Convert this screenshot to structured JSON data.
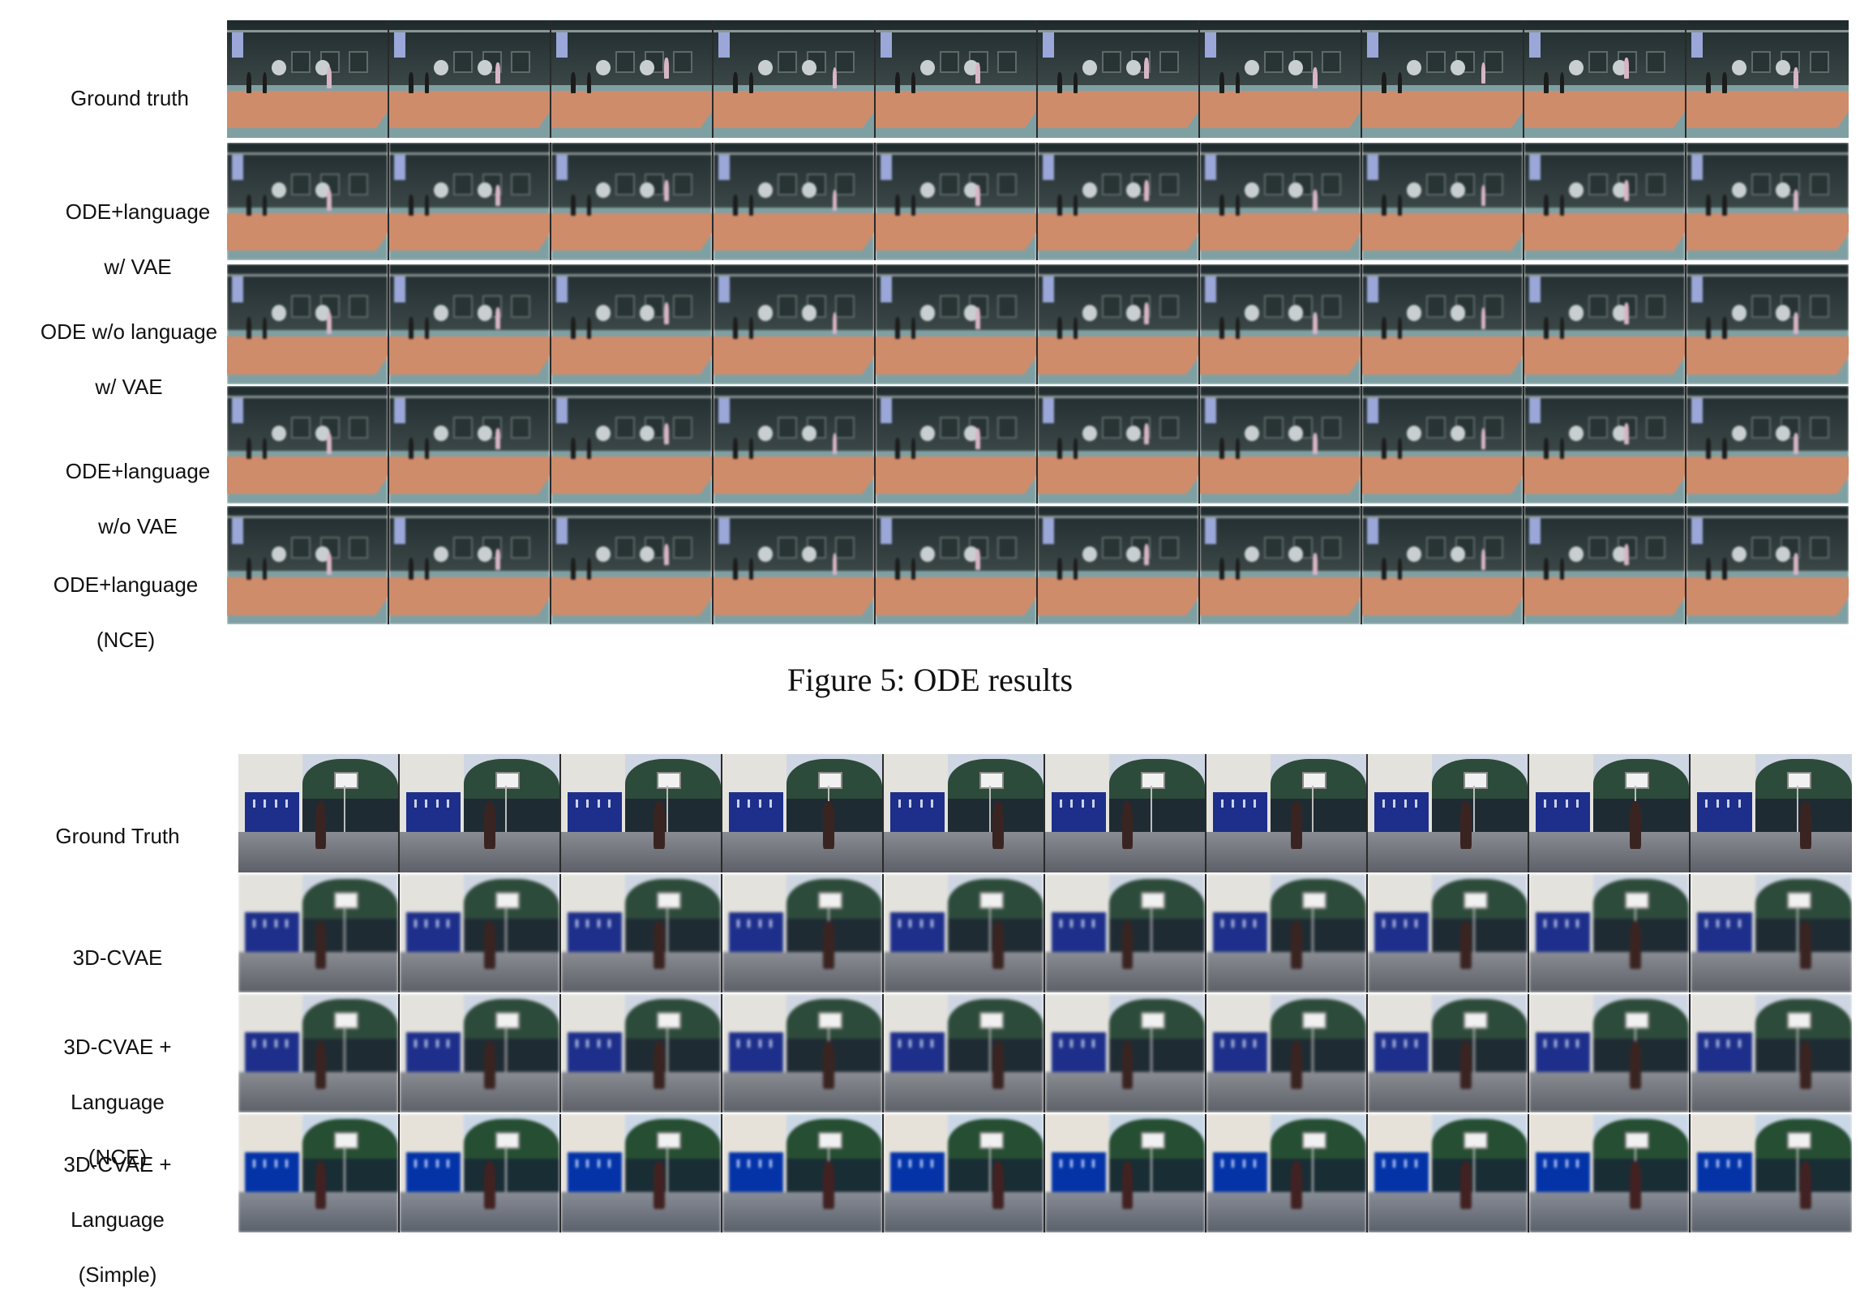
{
  "figure5": {
    "rows": [
      {
        "label": [
          "Ground truth"
        ],
        "style": "sharp"
      },
      {
        "label": [
          "ODE+language",
          "w/ VAE"
        ],
        "style": "blur"
      },
      {
        "label": [
          "ODE w/o language",
          "w/ VAE"
        ],
        "style": "blur"
      },
      {
        "label": [
          "ODE+language",
          "w/o VAE"
        ],
        "style": "blur"
      },
      {
        "label": [
          "ODE+language",
          "(NCE)"
        ],
        "style": "blur"
      }
    ],
    "frames_per_row": 10,
    "caption": "Figure 5: ODE results"
  },
  "figure6": {
    "rows": [
      {
        "label": [
          "Ground Truth"
        ],
        "style": "sharp"
      },
      {
        "label": [
          "3D-CVAE"
        ],
        "style": "blur"
      },
      {
        "label": [
          "3D-CVAE +",
          "Language",
          "(NCE)"
        ],
        "style": "blur"
      },
      {
        "label": [
          "3D-CVAE +",
          "Language",
          "(Simple)"
        ],
        "style": "tint"
      }
    ],
    "frames_per_row": 10
  }
}
